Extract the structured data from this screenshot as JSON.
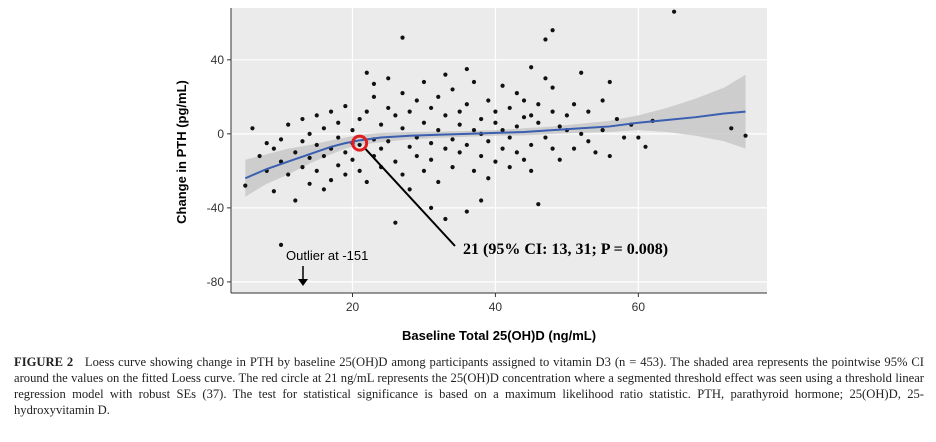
{
  "chart_data": {
    "type": "scatter",
    "xlabel": "Baseline Total 25(OH)D (ng/mL)",
    "ylabel": "Change in PTH (pg/mL)",
    "xlim": [
      3,
      78
    ],
    "ylim": [
      -86,
      68
    ],
    "xticks": [
      20,
      40,
      60
    ],
    "yticks": [
      -80,
      -40,
      0,
      40
    ],
    "grid": true,
    "points": [
      [
        5,
        -28
      ],
      [
        6,
        3
      ],
      [
        7,
        -12
      ],
      [
        8,
        -5
      ],
      [
        8,
        -20
      ],
      [
        9,
        -8
      ],
      [
        9,
        -31
      ],
      [
        10,
        -15
      ],
      [
        10,
        -3
      ],
      [
        11,
        -22
      ],
      [
        11,
        5
      ],
      [
        12,
        -10
      ],
      [
        12,
        -36
      ],
      [
        13,
        -18
      ],
      [
        13,
        -4
      ],
      [
        13,
        8
      ],
      [
        14,
        -27
      ],
      [
        14,
        -13
      ],
      [
        14,
        0
      ],
      [
        15,
        -6
      ],
      [
        15,
        -20
      ],
      [
        15,
        10
      ],
      [
        16,
        -30
      ],
      [
        16,
        -12
      ],
      [
        16,
        3
      ],
      [
        17,
        -25
      ],
      [
        17,
        -8
      ],
      [
        17,
        12
      ],
      [
        18,
        -17
      ],
      [
        18,
        -2
      ],
      [
        18,
        6
      ],
      [
        19,
        -22
      ],
      [
        19,
        -10
      ],
      [
        19,
        15
      ],
      [
        20,
        -5
      ],
      [
        20,
        -14
      ],
      [
        20,
        2
      ],
      [
        21,
        -20
      ],
      [
        21,
        8
      ],
      [
        21,
        -6
      ],
      [
        22,
        33
      ],
      [
        22,
        12
      ],
      [
        22,
        -26
      ],
      [
        23,
        -3
      ],
      [
        23,
        -12
      ],
      [
        23,
        20
      ],
      [
        24,
        5
      ],
      [
        24,
        -18
      ],
      [
        24,
        -8
      ],
      [
        25,
        30
      ],
      [
        25,
        14
      ],
      [
        25,
        -4
      ],
      [
        26,
        -48
      ],
      [
        26,
        10
      ],
      [
        26,
        -15
      ],
      [
        27,
        3
      ],
      [
        27,
        -22
      ],
      [
        27,
        22
      ],
      [
        28,
        -7
      ],
      [
        28,
        12
      ],
      [
        28,
        -30
      ],
      [
        29,
        -2
      ],
      [
        29,
        18
      ],
      [
        29,
        -12
      ],
      [
        30,
        28
      ],
      [
        30,
        6
      ],
      [
        30,
        -20
      ],
      [
        31,
        -5
      ],
      [
        31,
        14
      ],
      [
        31,
        -14
      ],
      [
        32,
        2
      ],
      [
        32,
        -26
      ],
      [
        32,
        20
      ],
      [
        33,
        10
      ],
      [
        33,
        -8
      ],
      [
        33,
        -46
      ],
      [
        34,
        -3
      ],
      [
        34,
        24
      ],
      [
        34,
        -18
      ],
      [
        35,
        12
      ],
      [
        35,
        -10
      ],
      [
        35,
        5
      ],
      [
        36,
        -42
      ],
      [
        36,
        -6
      ],
      [
        36,
        16
      ],
      [
        37,
        2
      ],
      [
        37,
        -20
      ],
      [
        37,
        28
      ],
      [
        38,
        8
      ],
      [
        38,
        -12
      ],
      [
        38,
        0
      ],
      [
        39,
        18
      ],
      [
        39,
        -4
      ],
      [
        39,
        -24
      ],
      [
        40,
        6
      ],
      [
        40,
        -15
      ],
      [
        40,
        12
      ],
      [
        41,
        -8
      ],
      [
        41,
        26
      ],
      [
        41,
        2
      ],
      [
        42,
        -18
      ],
      [
        42,
        14
      ],
      [
        42,
        -2
      ],
      [
        43,
        22
      ],
      [
        43,
        4
      ],
      [
        43,
        -10
      ],
      [
        44,
        9
      ],
      [
        44,
        -14
      ],
      [
        44,
        18
      ],
      [
        45,
        -6
      ],
      [
        45,
        10
      ],
      [
        45,
        -20
      ],
      [
        46,
        6
      ],
      [
        46,
        -38
      ],
      [
        46,
        16
      ],
      [
        47,
        -2
      ],
      [
        47,
        30
      ],
      [
        48,
        12
      ],
      [
        48,
        -8
      ],
      [
        49,
        4
      ],
      [
        49,
        -14
      ],
      [
        50,
        2
      ],
      [
        50,
        10
      ],
      [
        51,
        -8
      ],
      [
        51,
        16
      ],
      [
        52,
        33
      ],
      [
        52,
        0
      ],
      [
        53,
        -4
      ],
      [
        53,
        12
      ],
      [
        54,
        -10
      ],
      [
        55,
        18
      ],
      [
        55,
        2
      ],
      [
        56,
        28
      ],
      [
        56,
        -12
      ],
      [
        57,
        8
      ],
      [
        58,
        -2
      ],
      [
        59,
        5
      ],
      [
        60,
        -2
      ],
      [
        61,
        -7
      ],
      [
        62,
        7
      ],
      [
        65,
        66
      ],
      [
        73,
        3
      ],
      [
        75,
        -1
      ],
      [
        10,
        -60
      ],
      [
        48,
        56
      ],
      [
        47,
        51
      ],
      [
        27,
        52
      ],
      [
        23,
        27
      ],
      [
        31,
        -40
      ],
      [
        38,
        -36
      ],
      [
        33,
        32
      ],
      [
        36,
        35
      ],
      [
        45,
        36
      ],
      [
        48,
        25
      ]
    ],
    "loess": [
      [
        5,
        -24
      ],
      [
        8,
        -19
      ],
      [
        11,
        -15
      ],
      [
        14,
        -11
      ],
      [
        17,
        -7
      ],
      [
        19,
        -5
      ],
      [
        21,
        -3.5
      ],
      [
        24,
        -2
      ],
      [
        28,
        -1
      ],
      [
        32,
        -0.5
      ],
      [
        36,
        0
      ],
      [
        40,
        0.5
      ],
      [
        44,
        1
      ],
      [
        48,
        2
      ],
      [
        52,
        3
      ],
      [
        56,
        4
      ],
      [
        60,
        6
      ],
      [
        64,
        7.5
      ],
      [
        68,
        9
      ],
      [
        72,
        11
      ],
      [
        75,
        12
      ]
    ],
    "ci_upper": [
      [
        5,
        -14
      ],
      [
        8,
        -11
      ],
      [
        11,
        -8
      ],
      [
        14,
        -6
      ],
      [
        17,
        -3.5
      ],
      [
        19,
        -2
      ],
      [
        21,
        -0.5
      ],
      [
        24,
        0.5
      ],
      [
        28,
        1
      ],
      [
        32,
        1.2
      ],
      [
        36,
        1.6
      ],
      [
        40,
        2
      ],
      [
        44,
        3
      ],
      [
        48,
        4
      ],
      [
        52,
        5.5
      ],
      [
        56,
        7
      ],
      [
        60,
        10
      ],
      [
        64,
        14
      ],
      [
        68,
        19
      ],
      [
        72,
        25
      ],
      [
        75,
        32
      ]
    ],
    "ci_lower": [
      [
        5,
        -34
      ],
      [
        8,
        -27
      ],
      [
        11,
        -22
      ],
      [
        14,
        -16
      ],
      [
        17,
        -11
      ],
      [
        19,
        -8
      ],
      [
        21,
        -6
      ],
      [
        24,
        -4.5
      ],
      [
        28,
        -3
      ],
      [
        32,
        -2.2
      ],
      [
        36,
        -1.6
      ],
      [
        40,
        -1
      ],
      [
        44,
        -0.8
      ],
      [
        48,
        0
      ],
      [
        52,
        0.5
      ],
      [
        56,
        1
      ],
      [
        60,
        2
      ],
      [
        64,
        1
      ],
      [
        68,
        -1
      ],
      [
        72,
        -4
      ],
      [
        75,
        -8
      ]
    ],
    "threshold": {
      "x": 21,
      "y": -5
    },
    "annotation": "21 (95% CI: 13, 31; P = 0.008)",
    "outlier_label": "Outlier at -151"
  },
  "caption": {
    "label": "FIGURE 2",
    "text": "Loess curve showing change in PTH by baseline 25(OH)D among participants assigned to vitamin D3 (n = 453). The shaded area represents the pointwise 95% CI around the values on the fitted Loess curve. The red circle at 21 ng/mL represents the 25(OH)D concentration where a segmented threshold effect was seen using a threshold linear regression model with robust SEs (37). The test for statistical significance is based on a maximum likelihood ratio statistic. PTH, parathyroid hormone; 25(OH)D, 25-hydroxyvitamin D."
  },
  "colors": {
    "panel": "#ebebeb",
    "grid": "#ffffff",
    "line": "#3a5fb0",
    "ci": "#c8c8c8",
    "point": "#111111",
    "marker": "#e02020"
  }
}
